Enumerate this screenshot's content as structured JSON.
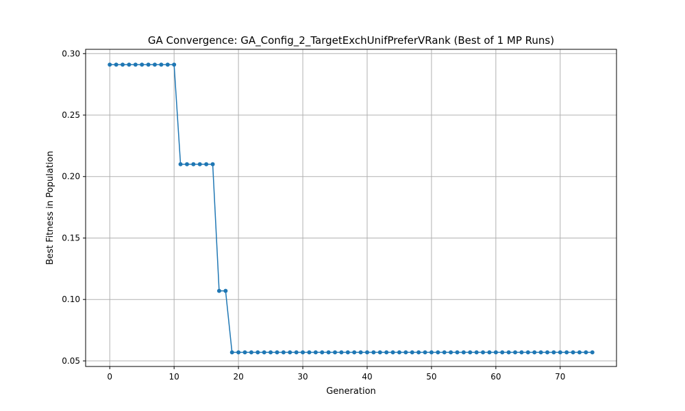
{
  "chart_data": {
    "type": "line",
    "title": "GA Convergence: GA_Config_2_TargetExchUnifPreferVRank (Best of 1 MP Runs)",
    "xlabel": "Generation",
    "ylabel": "Best Fitness in Population",
    "xlim": [
      -3.75,
      78.75
    ],
    "ylim": [
      0.0455,
      0.3035
    ],
    "xticks": [
      0,
      10,
      20,
      30,
      40,
      50,
      60,
      70
    ],
    "xtick_labels": [
      "0",
      "10",
      "20",
      "30",
      "40",
      "50",
      "60",
      "70"
    ],
    "yticks": [
      0.05,
      0.1,
      0.15,
      0.2,
      0.25,
      0.3
    ],
    "ytick_labels": [
      "0.05",
      "0.10",
      "0.15",
      "0.20",
      "0.25",
      "0.30"
    ],
    "grid": true,
    "color": "#1f77b4",
    "marker": "circle",
    "series": [
      {
        "x": [
          0,
          1,
          2,
          3,
          4,
          5,
          6,
          7,
          8,
          9,
          10,
          11,
          12,
          13,
          14,
          15,
          16,
          17,
          18,
          19,
          20,
          21,
          22,
          23,
          24,
          25,
          26,
          27,
          28,
          29,
          30,
          31,
          32,
          33,
          34,
          35,
          36,
          37,
          38,
          39,
          40,
          41,
          42,
          43,
          44,
          45,
          46,
          47,
          48,
          49,
          50,
          51,
          52,
          53,
          54,
          55,
          56,
          57,
          58,
          59,
          60,
          61,
          62,
          63,
          64,
          65,
          66,
          67,
          68,
          69,
          70,
          71,
          72,
          73,
          74,
          75
        ],
        "y": [
          0.291,
          0.291,
          0.291,
          0.291,
          0.291,
          0.291,
          0.291,
          0.291,
          0.291,
          0.291,
          0.291,
          0.21,
          0.21,
          0.21,
          0.21,
          0.21,
          0.21,
          0.107,
          0.107,
          0.057,
          0.057,
          0.057,
          0.057,
          0.057,
          0.057,
          0.057,
          0.057,
          0.057,
          0.057,
          0.057,
          0.057,
          0.057,
          0.057,
          0.057,
          0.057,
          0.057,
          0.057,
          0.057,
          0.057,
          0.057,
          0.057,
          0.057,
          0.057,
          0.057,
          0.057,
          0.057,
          0.057,
          0.057,
          0.057,
          0.057,
          0.057,
          0.057,
          0.057,
          0.057,
          0.057,
          0.057,
          0.057,
          0.057,
          0.057,
          0.057,
          0.057,
          0.057,
          0.057,
          0.057,
          0.057,
          0.057,
          0.057,
          0.057,
          0.057,
          0.057,
          0.057,
          0.057,
          0.057,
          0.057,
          0.057,
          0.057
        ]
      }
    ]
  }
}
